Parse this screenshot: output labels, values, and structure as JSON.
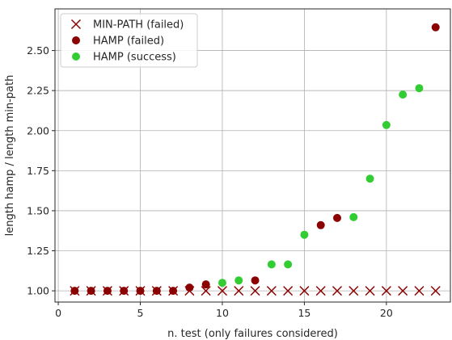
{
  "chart_data": {
    "type": "scatter",
    "title": "",
    "xlabel": "n. test (only failures considered)",
    "ylabel": "length hamp / length min-path",
    "xlim": [
      -0.2,
      23.9
    ],
    "ylim": [
      0.93,
      2.76
    ],
    "xticks": [
      0,
      5,
      10,
      15,
      20
    ],
    "yticks": [
      1.0,
      1.25,
      1.5,
      1.75,
      2.0,
      2.25,
      2.5
    ],
    "ytick_labels": [
      "1.00",
      "1.25",
      "1.50",
      "1.75",
      "2.00",
      "2.25",
      "2.50"
    ],
    "grid": true,
    "legend_position": "top-left",
    "series": [
      {
        "name": "MIN-PATH (failed)",
        "marker": "x",
        "color": "#8b0000",
        "points": [
          [
            1,
            1
          ],
          [
            2,
            1
          ],
          [
            3,
            1
          ],
          [
            4,
            1
          ],
          [
            5,
            1
          ],
          [
            6,
            1
          ],
          [
            7,
            1
          ],
          [
            8,
            1
          ],
          [
            9,
            1
          ],
          [
            10,
            1
          ],
          [
            11,
            1
          ],
          [
            12,
            1
          ],
          [
            13,
            1
          ],
          [
            14,
            1
          ],
          [
            15,
            1
          ],
          [
            16,
            1
          ],
          [
            17,
            1
          ],
          [
            18,
            1
          ],
          [
            19,
            1
          ],
          [
            20,
            1
          ],
          [
            21,
            1
          ],
          [
            22,
            1
          ],
          [
            23,
            1
          ]
        ]
      },
      {
        "name": "HAMP (failed)",
        "marker": "circle",
        "color": "#8b0000",
        "points": [
          [
            1,
            1.0
          ],
          [
            2,
            1.0
          ],
          [
            3,
            1.0
          ],
          [
            4,
            1.0
          ],
          [
            5,
            1.0
          ],
          [
            6,
            1.0
          ],
          [
            7,
            1.0
          ],
          [
            8,
            1.02
          ],
          [
            9,
            1.04
          ],
          [
            12,
            1.065
          ],
          [
            16,
            1.41
          ],
          [
            17,
            1.455
          ],
          [
            23,
            2.645
          ]
        ]
      },
      {
        "name": "HAMP (success)",
        "marker": "circle",
        "color": "#32cd32",
        "points": [
          [
            10,
            1.05
          ],
          [
            11,
            1.065
          ],
          [
            13,
            1.165
          ],
          [
            14,
            1.165
          ],
          [
            15,
            1.35
          ],
          [
            18,
            1.46
          ],
          [
            19,
            1.7
          ],
          [
            20,
            2.035
          ],
          [
            21,
            2.225
          ],
          [
            22,
            2.265
          ]
        ]
      }
    ]
  }
}
